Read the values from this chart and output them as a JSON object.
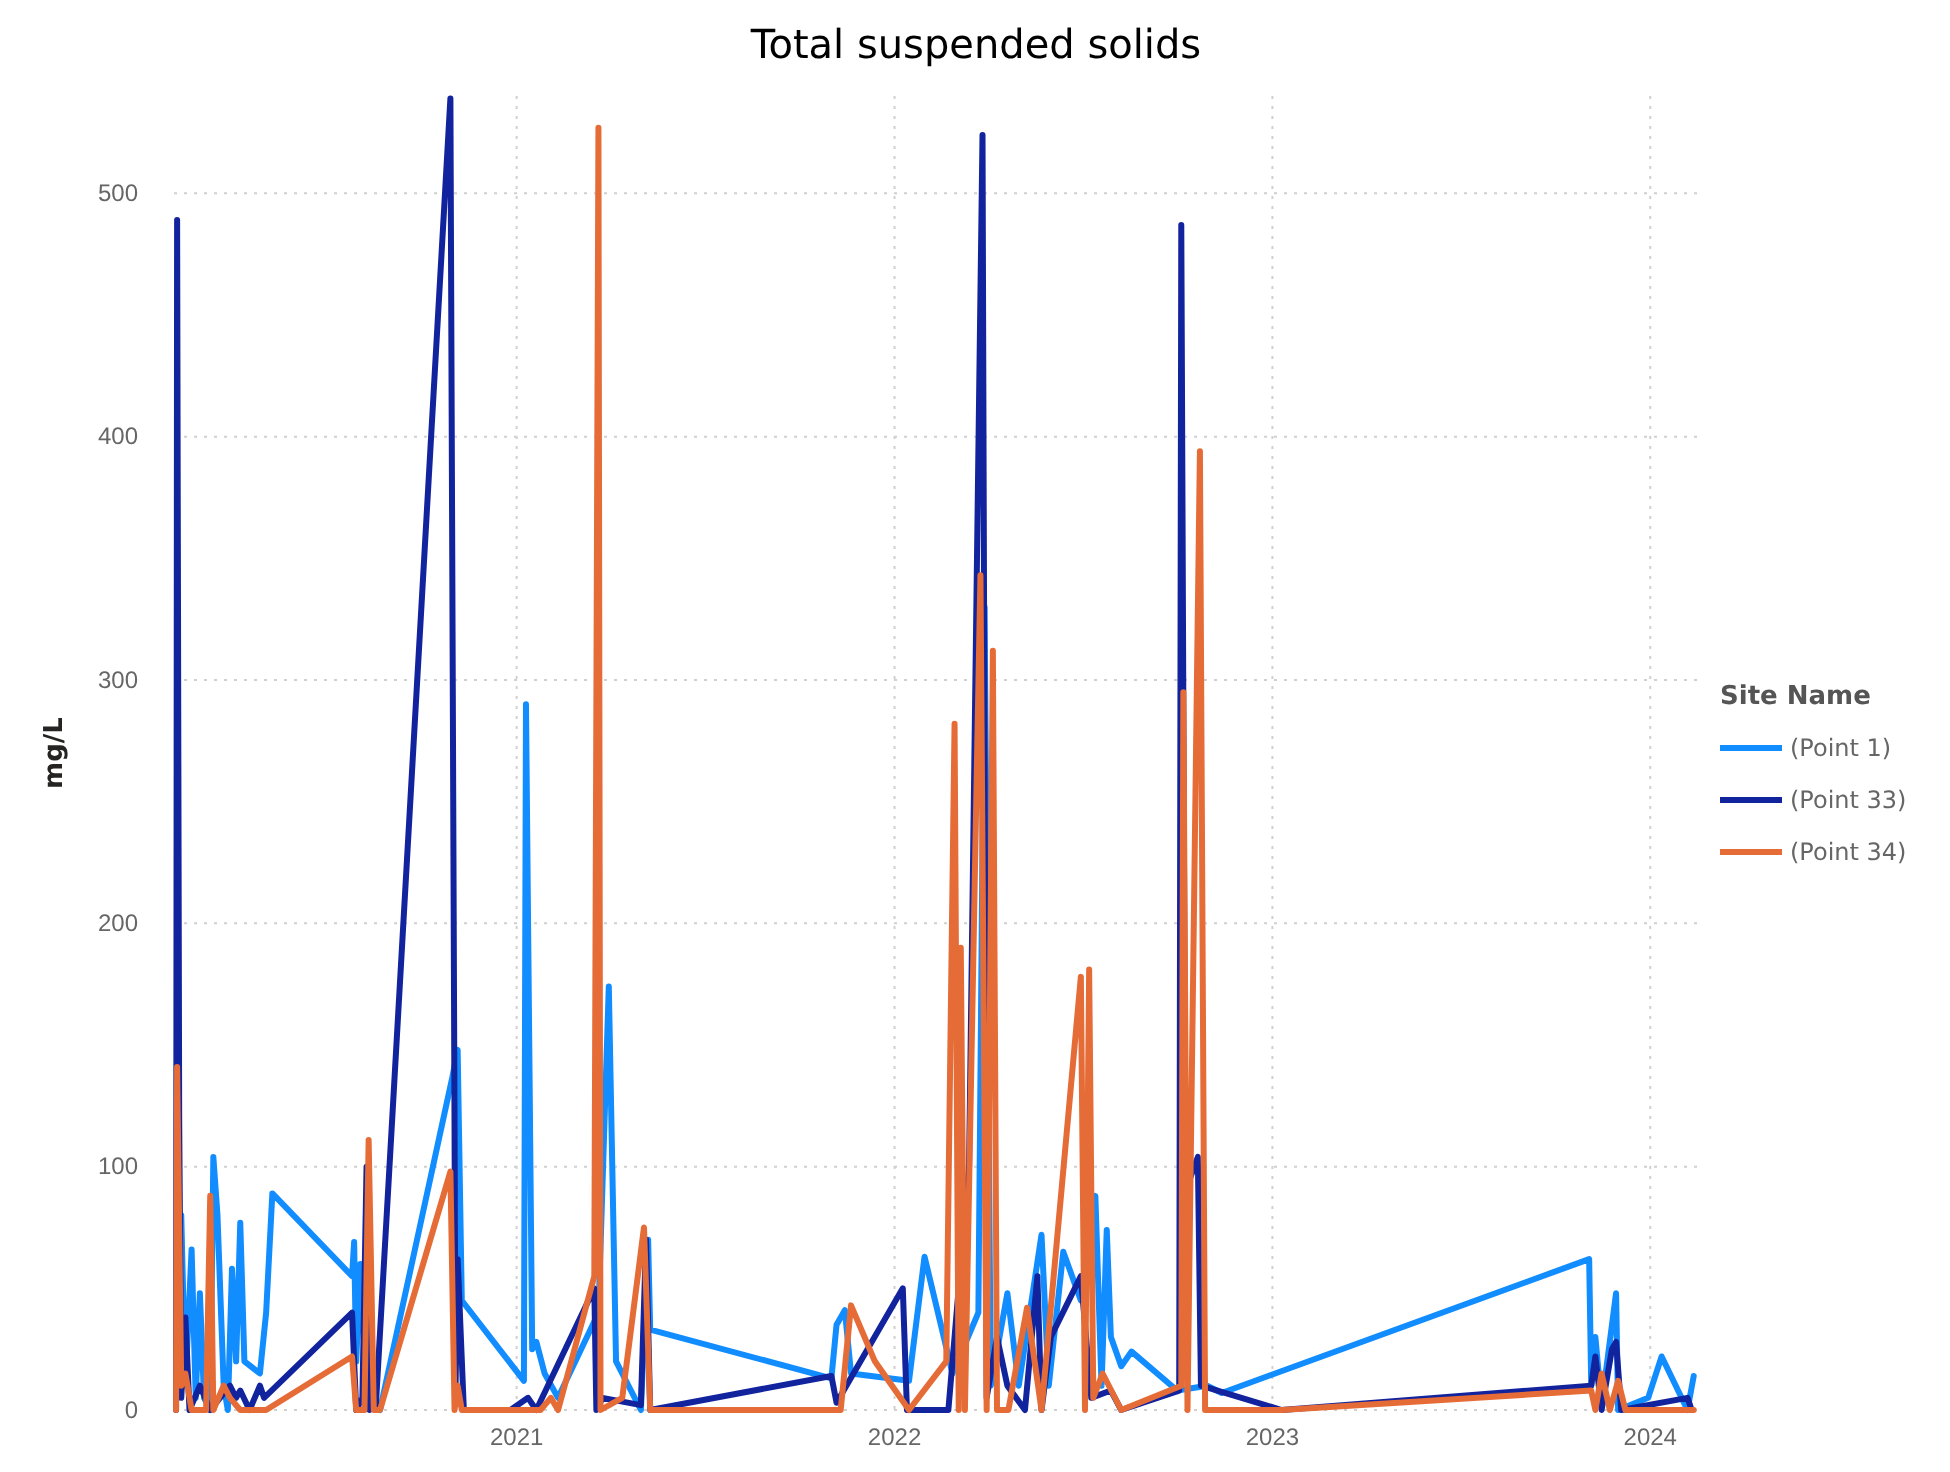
{
  "chart_data": {
    "type": "line",
    "title": "Total suspended solids",
    "ylabel": "mg/L",
    "legend_title": "Site Name",
    "legend": "right",
    "grid": true,
    "line_style": "solid",
    "xlim": [
      "2020-02-05",
      "2024-02-20"
    ],
    "xticks": [
      {
        "value": "2021-01-01",
        "label": "2021"
      },
      {
        "value": "2022-01-01",
        "label": "2022"
      },
      {
        "value": "2023-01-01",
        "label": "2023"
      },
      {
        "value": "2024-01-01",
        "label": "2024"
      }
    ],
    "ylim": [
      0,
      540
    ],
    "yticks": [
      0,
      100,
      200,
      300,
      400,
      500
    ],
    "series": [
      {
        "name": "(Point 1)",
        "color": "#118dff",
        "x": [
          "2020-02-07",
          "2020-02-12",
          "2020-02-16",
          "2020-02-22",
          "2020-02-26",
          "2020-03-01",
          "2020-03-05",
          "2020-03-11",
          "2020-03-14",
          "2020-03-18",
          "2020-03-24",
          "2020-03-28",
          "2020-04-01",
          "2020-04-05",
          "2020-04-09",
          "2020-04-13",
          "2020-04-28",
          "2020-05-04",
          "2020-05-10",
          "2020-07-26",
          "2020-07-28",
          "2020-07-30",
          "2020-08-03",
          "2020-08-09",
          "2020-08-22",
          "2020-10-31",
          "2020-11-05",
          "2020-11-09",
          "2021-01-08",
          "2021-01-10",
          "2021-01-16",
          "2021-01-20",
          "2021-01-28",
          "2021-02-10",
          "2021-03-21",
          "2021-03-31",
          "2021-04-07",
          "2021-05-01",
          "2021-05-08",
          "2021-05-10",
          "2021-11-01",
          "2021-11-06",
          "2021-11-14",
          "2021-11-20",
          "2022-01-15",
          "2022-01-30",
          "2022-02-26",
          "2022-03-23",
          "2022-03-29",
          "2022-04-04",
          "2022-04-20",
          "2022-05-01",
          "2022-05-23",
          "2022-05-30",
          "2022-06-13",
          "2022-06-30",
          "2022-07-14",
          "2022-07-20",
          "2022-07-25",
          "2022-07-29",
          "2022-08-08",
          "2022-08-18",
          "2022-10-01",
          "2022-10-30",
          "2022-11-13",
          "2023-11-03",
          "2023-11-05",
          "2023-11-09",
          "2023-11-15",
          "2023-11-29",
          "2023-12-01",
          "2023-12-30",
          "2024-01-12",
          "2024-02-06",
          "2024-02-12"
        ],
        "values": [
          5,
          80,
          10,
          66,
          5,
          48,
          5,
          0,
          104,
          80,
          10,
          0,
          58,
          20,
          77,
          20,
          15,
          40,
          89,
          55,
          69,
          20,
          60,
          5,
          0,
          137,
          148,
          45,
          12,
          290,
          25,
          28,
          15,
          5,
          40,
          174,
          20,
          0,
          70,
          33,
          13,
          35,
          41,
          15,
          12,
          63,
          15,
          40,
          330,
          10,
          48,
          10,
          72,
          10,
          65,
          45,
          88,
          10,
          74,
          30,
          18,
          24,
          8,
          10,
          7,
          62,
          10,
          30,
          2,
          48,
          0,
          5,
          22,
          0,
          14
        ]
      },
      {
        "name": "(Point 33)",
        "color": "#12239e",
        "x": [
          "2020-02-07",
          "2020-02-08",
          "2020-02-10",
          "2020-02-12",
          "2020-02-16",
          "2020-02-20",
          "2020-03-01",
          "2020-03-11",
          "2020-03-30",
          "2020-04-05",
          "2020-04-09",
          "2020-04-18",
          "2020-04-28",
          "2020-05-02",
          "2020-07-26",
          "2020-07-30",
          "2020-08-05",
          "2020-08-09",
          "2020-08-12",
          "2020-08-18",
          "2020-10-29",
          "2020-11-03",
          "2020-11-05",
          "2020-11-11",
          "2020-12-26",
          "2021-01-12",
          "2021-01-20",
          "2021-03-17",
          "2021-03-19",
          "2021-03-25",
          "2021-05-01",
          "2021-05-06",
          "2021-05-10",
          "2021-11-01",
          "2021-11-06",
          "2022-01-09",
          "2022-01-13",
          "2022-02-22",
          "2022-03-14",
          "2022-03-27",
          "2022-03-31",
          "2022-04-10",
          "2022-04-20",
          "2022-05-07",
          "2022-05-19",
          "2022-05-23",
          "2022-06-01",
          "2022-06-30",
          "2022-07-10",
          "2022-07-29",
          "2022-08-08",
          "2022-10-03",
          "2022-10-05",
          "2022-10-09",
          "2022-10-21",
          "2022-10-24",
          "2023-01-10",
          "2023-11-05",
          "2023-11-09",
          "2023-11-15",
          "2023-11-25",
          "2023-11-29",
          "2023-12-04",
          "2024-02-06",
          "2024-02-10"
        ],
        "values": [
          0,
          489,
          120,
          5,
          38,
          0,
          10,
          0,
          10,
          5,
          8,
          0,
          10,
          5,
          40,
          0,
          5,
          100,
          0,
          2,
          539,
          10,
          62,
          0,
          0,
          5,
          0,
          50,
          0,
          5,
          2,
          70,
          0,
          14,
          3,
          50,
          0,
          0,
          100,
          524,
          5,
          30,
          10,
          0,
          55,
          0,
          30,
          55,
          5,
          8,
          0,
          8,
          487,
          90,
          104,
          10,
          0,
          10,
          22,
          0,
          25,
          28,
          0,
          5,
          0
        ]
      },
      {
        "name": "(Point 34)",
        "color": "#e66c37",
        "x": [
          "2020-02-07",
          "2020-02-08",
          "2020-02-12",
          "2020-02-16",
          "2020-02-22",
          "2020-03-07",
          "2020-03-11",
          "2020-03-14",
          "2020-03-24",
          "2020-03-30",
          "2020-04-09",
          "2020-05-04",
          "2020-07-26",
          "2020-07-30",
          "2020-08-07",
          "2020-08-11",
          "2020-08-16",
          "2020-08-22",
          "2020-10-29",
          "2020-11-02",
          "2020-11-05",
          "2020-11-09",
          "2021-01-24",
          "2021-02-03",
          "2021-02-10",
          "2021-03-17",
          "2021-03-21",
          "2021-03-23",
          "2021-04-13",
          "2021-05-04",
          "2021-05-10",
          "2021-11-10",
          "2021-11-20",
          "2021-12-13",
          "2022-01-15",
          "2022-02-20",
          "2022-02-28",
          "2022-03-04",
          "2022-03-06",
          "2022-03-10",
          "2022-03-25",
          "2022-03-31",
          "2022-04-06",
          "2022-04-10",
          "2022-04-21",
          "2022-05-09",
          "2022-05-23",
          "2022-06-30",
          "2022-07-04",
          "2022-07-08",
          "2022-07-12",
          "2022-07-21",
          "2022-08-08",
          "2022-10-05",
          "2022-10-07",
          "2022-10-11",
          "2022-10-23",
          "2022-10-28",
          "2023-01-10",
          "2023-11-05",
          "2023-11-09",
          "2023-11-15",
          "2023-11-23",
          "2023-12-01",
          "2023-12-08",
          "2024-02-12"
        ],
        "values": [
          0,
          141,
          10,
          15,
          0,
          0,
          88,
          0,
          10,
          5,
          0,
          0,
          22,
          0,
          0,
          111,
          0,
          0,
          98,
          0,
          10,
          0,
          0,
          5,
          0,
          55,
          527,
          0,
          5,
          75,
          0,
          0,
          43,
          20,
          0,
          20,
          282,
          0,
          190,
          0,
          343,
          0,
          312,
          0,
          0,
          42,
          0,
          178,
          0,
          181,
          5,
          15,
          0,
          10,
          295,
          0,
          394,
          0,
          0,
          8,
          0,
          15,
          0,
          12,
          0,
          0
        ]
      }
    ]
  }
}
